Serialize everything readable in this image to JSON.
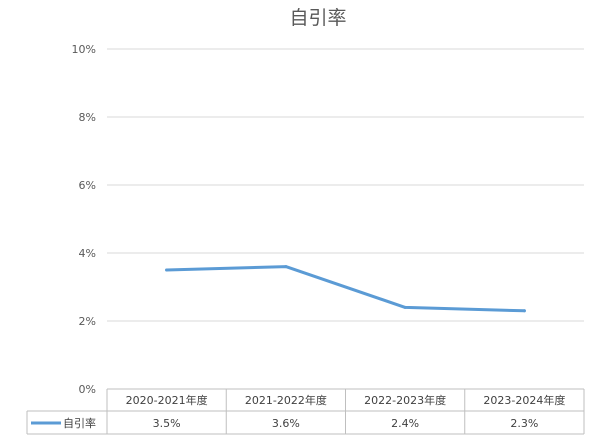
{
  "chart_data": {
    "type": "line",
    "title": "自引率",
    "categories": [
      "2020-2021年度",
      "2021-2022年度",
      "2022-2023年度",
      "2023-2024年度"
    ],
    "series": [
      {
        "name": "自引率",
        "values": [
          3.5,
          3.6,
          2.4,
          2.3
        ],
        "color": "#5b9bd5"
      }
    ],
    "ylim": [
      0,
      10
    ],
    "yticks": [
      0,
      2,
      4,
      6,
      8,
      10
    ],
    "ytick_labels": [
      "0%",
      "2%",
      "4%",
      "6%",
      "8%",
      "10%"
    ],
    "data_table": {
      "row_label": "自引率",
      "cells": [
        "3.5%",
        "3.6%",
        "2.4%",
        "2.3%"
      ]
    },
    "grid": true,
    "legend": "data-table"
  }
}
